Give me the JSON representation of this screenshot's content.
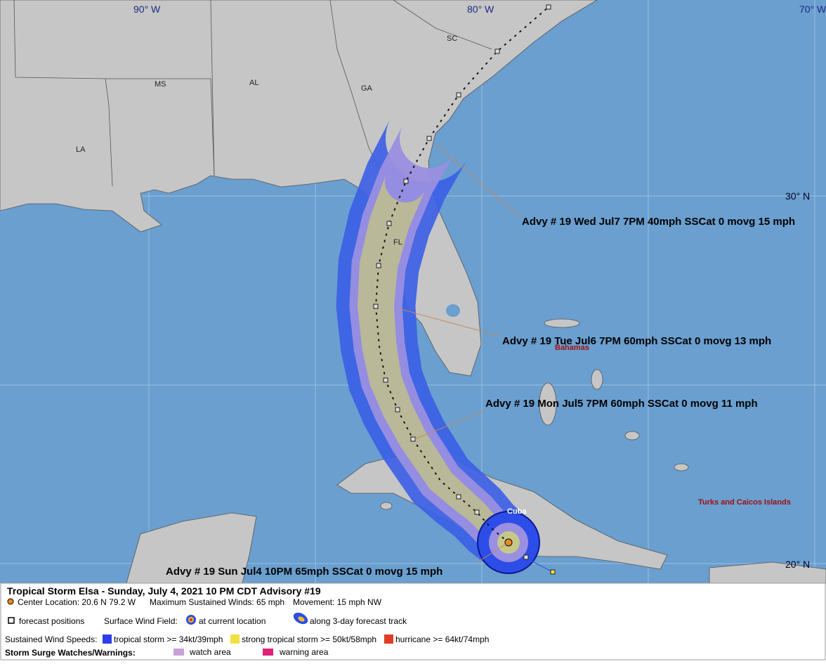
{
  "map": {
    "longitudes": [
      "90° W",
      "80° W",
      "70° W"
    ],
    "latitudes": [
      "30° N",
      "20° N"
    ],
    "states": [
      "SC",
      "GA",
      "AL",
      "MS",
      "LA",
      "FL"
    ],
    "places": [
      "Bahamas",
      "Cuba",
      "Turks and Caicos Islands"
    ],
    "advisories": [
      "Advy # 19 Wed Jul7 7PM  40mph SSCat 0 movg 15 mph",
      "Advy # 19 Tue Jul6 7PM  60mph SSCat 0 movg 13 mph",
      "Advy # 19 Mon Jul5 7PM  60mph SSCat 0 movg 11 mph",
      "Advy # 19 Sun Jul4 10PM  65mph SSCat 0 movg 15 mph"
    ]
  },
  "legend": {
    "title": "Tropical Storm Elsa  -  Sunday, July 4, 2021  10 PM CDT   Advisory #19",
    "center": "Center Location: 20.6 N  79.2 W",
    "winds": "Maximum Sustained Winds: 65 mph",
    "movement": "Movement: 15 mph NW",
    "forecast_positions": "forecast positions",
    "wind_field": "Surface Wind Field:",
    "current": "at current location",
    "track": "along 3-day forecast track",
    "speeds": "Sustained Wind Speeds:",
    "ts": "tropical storm >= 34kt/39mph",
    "sts": "strong tropical storm >= 50kt/58mph",
    "hu": "hurricane >= 64kt/74mph",
    "surge": "Storm Surge Watches/Warnings:",
    "watch": "watch area",
    "warning": "warning area"
  }
}
